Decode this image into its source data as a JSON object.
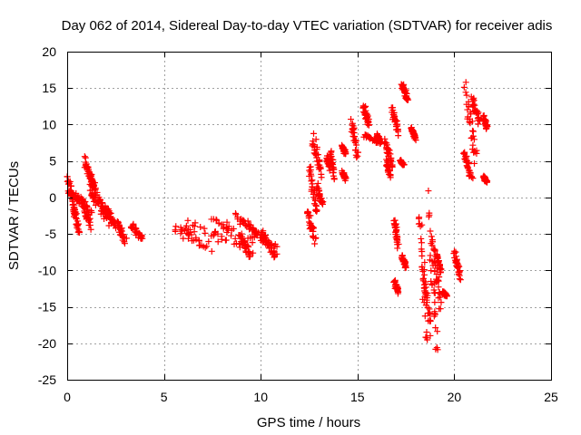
{
  "chart_data": {
    "type": "scatter",
    "title": "Day 062 of 2014, Sidereal Day-to-day VTEC variation (SDTVAR) for receiver adis",
    "xlabel": "GPS time / hours",
    "ylabel": "SDTVAR / TECUs",
    "xlim": [
      0,
      25
    ],
    "ylim": [
      -25,
      20
    ],
    "xticks": [
      "0",
      "5",
      "10",
      "15",
      "20",
      "25"
    ],
    "yticks": [
      "20",
      "15",
      "10",
      "5",
      "0",
      "-5",
      "-10",
      "-15",
      "-20",
      "-25"
    ],
    "grid": true,
    "marker": "+",
    "color": "#ff0000",
    "clusters": [
      {
        "x": [
          0.0,
          0.4
        ],
        "y": [
          2.8,
          -1.5
        ]
      },
      {
        "x": [
          0.1,
          0.7
        ],
        "y": [
          0.8,
          -0.5
        ]
      },
      {
        "x": [
          0.3,
          0.6
        ],
        "y": [
          -1.0,
          -5.0
        ]
      },
      {
        "x": [
          0.5,
          1.2
        ],
        "y": [
          0.5,
          -2.0
        ]
      },
      {
        "x": [
          0.8,
          1.2
        ],
        "y": [
          -0.5,
          -4.0
        ]
      },
      {
        "x": [
          0.9,
          1.3
        ],
        "y": [
          5.0,
          2.0
        ]
      },
      {
        "x": [
          1.1,
          1.5
        ],
        "y": [
          3.5,
          0.5
        ]
      },
      {
        "x": [
          1.2,
          2.0
        ],
        "y": [
          1.0,
          -2.5
        ]
      },
      {
        "x": [
          1.5,
          2.3
        ],
        "y": [
          0.0,
          -3.5
        ]
      },
      {
        "x": [
          2.0,
          2.5
        ],
        "y": [
          -1.5,
          -4.0
        ]
      },
      {
        "x": [
          2.6,
          3.0
        ],
        "y": [
          -3.5,
          -6.0
        ]
      },
      {
        "x": [
          3.3,
          3.9
        ],
        "y": [
          -3.8,
          -5.8
        ]
      },
      {
        "x": [
          5.7,
          7.2
        ],
        "y": [
          -4.0,
          -7.0
        ]
      },
      {
        "x": [
          6.0,
          9.0
        ],
        "y": [
          -3.5,
          -6.5
        ]
      },
      {
        "x": [
          7.5,
          9.5
        ],
        "y": [
          -3.0,
          -6.0
        ]
      },
      {
        "x": [
          8.8,
          9.8
        ],
        "y": [
          -2.5,
          -5.0
        ]
      },
      {
        "x": [
          9.0,
          9.5
        ],
        "y": [
          -5.5,
          -8.0
        ]
      },
      {
        "x": [
          9.6,
          10.8
        ],
        "y": [
          -4.5,
          -7.5
        ]
      },
      {
        "x": [
          10.1,
          10.8
        ],
        "y": [
          -5.0,
          -8.0
        ]
      },
      {
        "x": [
          12.4,
          12.8
        ],
        "y": [
          -2.0,
          -6.0
        ]
      },
      {
        "x": [
          12.5,
          12.9
        ],
        "y": [
          4.5,
          -2.0
        ]
      },
      {
        "x": [
          12.7,
          13.1
        ],
        "y": [
          8.5,
          3.0
        ]
      },
      {
        "x": [
          12.9,
          13.2
        ],
        "y": [
          1.5,
          -1.0
        ]
      },
      {
        "x": [
          13.4,
          13.6
        ],
        "y": [
          5.5,
          4.0
        ]
      },
      {
        "x": [
          13.6,
          13.8
        ],
        "y": [
          6.0,
          3.0
        ]
      },
      {
        "x": [
          14.2,
          14.4
        ],
        "y": [
          7.0,
          6.0
        ]
      },
      {
        "x": [
          14.2,
          14.4
        ],
        "y": [
          3.5,
          2.5
        ]
      },
      {
        "x": [
          14.7,
          15.0
        ],
        "y": [
          10.5,
          6.0
        ]
      },
      {
        "x": [
          15.3,
          15.6
        ],
        "y": [
          12.5,
          10.0
        ]
      },
      {
        "x": [
          15.3,
          16.2
        ],
        "y": [
          8.5,
          7.5
        ]
      },
      {
        "x": [
          16.0,
          16.2
        ],
        "y": [
          8.5,
          7.5
        ]
      },
      {
        "x": [
          16.4,
          16.8
        ],
        "y": [
          7.5,
          4.5
        ]
      },
      {
        "x": [
          16.5,
          16.7
        ],
        "y": [
          5.0,
          3.0
        ]
      },
      {
        "x": [
          16.8,
          17.1
        ],
        "y": [
          12.0,
          9.0
        ]
      },
      {
        "x": [
          16.9,
          17.1
        ],
        "y": [
          -3.0,
          -6.5
        ]
      },
      {
        "x": [
          16.9,
          17.1
        ],
        "y": [
          -11.5,
          -13.0
        ]
      },
      {
        "x": [
          17.2,
          17.4
        ],
        "y": [
          5.0,
          4.5
        ]
      },
      {
        "x": [
          17.3,
          17.5
        ],
        "y": [
          -8.0,
          -9.5
        ]
      },
      {
        "x": [
          17.3,
          17.6
        ],
        "y": [
          15.5,
          13.5
        ]
      },
      {
        "x": [
          17.8,
          18.0
        ],
        "y": [
          9.5,
          8.0
        ]
      },
      {
        "x": [
          18.2,
          18.6
        ],
        "y": [
          -3.0,
          -18.0
        ]
      },
      {
        "x": [
          18.4,
          18.8
        ],
        "y": [
          -10.5,
          -17.5
        ]
      },
      {
        "x": [
          18.7,
          19.1
        ],
        "y": [
          -2.5,
          -20.0
        ]
      },
      {
        "x": [
          18.9,
          19.3
        ],
        "y": [
          -7.0,
          -14.5
        ]
      },
      {
        "x": [
          19.1,
          19.3
        ],
        "y": [
          -8.0,
          -10.0
        ]
      },
      {
        "x": [
          19.4,
          19.6
        ],
        "y": [
          -13.0,
          -13.5
        ]
      },
      {
        "x": [
          20.0,
          20.3
        ],
        "y": [
          -7.5,
          -11.0
        ]
      },
      {
        "x": [
          20.5,
          20.9
        ],
        "y": [
          6.0,
          3.0
        ]
      },
      {
        "x": [
          20.6,
          21.1
        ],
        "y": [
          14.5,
          5.0
        ]
      },
      {
        "x": [
          20.9,
          21.3
        ],
        "y": [
          13.5,
          10.5
        ]
      },
      {
        "x": [
          21.5,
          21.7
        ],
        "y": [
          11.0,
          9.5
        ]
      },
      {
        "x": [
          21.5,
          21.7
        ],
        "y": [
          2.8,
          2.2
        ]
      }
    ]
  }
}
